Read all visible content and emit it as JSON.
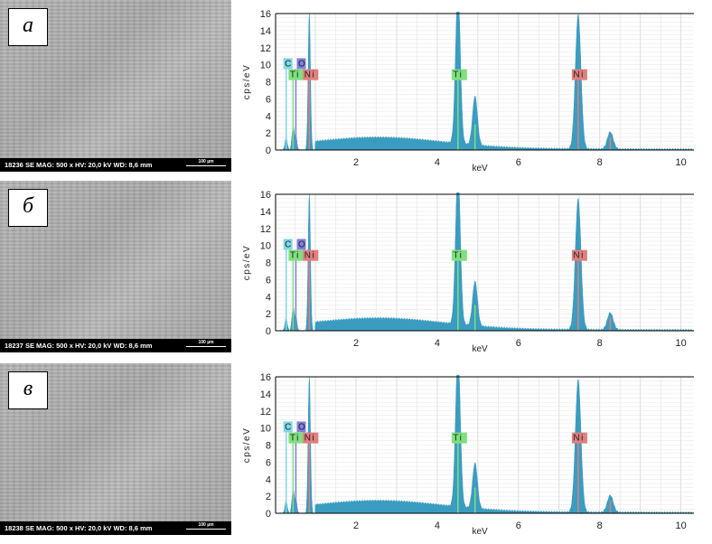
{
  "panels": [
    {
      "label": "а",
      "info": "18236  SE  MAG: 500 x  HV: 20,0 kV  WD: 8,6 mm",
      "scale": "100 µm",
      "tiKb": 5.7,
      "niKa": 15.7,
      "niKb": 2.0
    },
    {
      "label": "б",
      "info": "18237  SE  MAG: 500 x  HV: 20,0 kV  WD: 8,6 mm",
      "scale": "100 µm",
      "tiKb": 5.2,
      "niKa": 15.3,
      "niKb": 2.0
    },
    {
      "label": "в",
      "info": "18238  SE  MAG: 500 x  HV: 20,0 kV  WD: 8,6 mm",
      "scale": "100 µm",
      "tiKb": 5.3,
      "niKa": 15.5,
      "niKb": 2.0
    }
  ],
  "chart_data": {
    "type": "area",
    "xlabel": "keV",
    "ylabel": "cps/eV",
    "xlim": [
      0,
      10.3
    ],
    "ylim": [
      0,
      16
    ],
    "xticks": [
      "2",
      "4",
      "6",
      "8",
      "10"
    ],
    "yticks": [
      "0",
      "2",
      "4",
      "6",
      "8",
      "10",
      "12",
      "14",
      "16"
    ],
    "peaks": [
      {
        "e": 0.28,
        "h": 1.5
      },
      {
        "e": 0.45,
        "h": 2.7
      },
      {
        "e": 0.52,
        "h": 1.5
      },
      {
        "e": 0.85,
        "h": 16
      },
      {
        "e": 4.51,
        "h": 18
      },
      {
        "e": 4.93,
        "h": "tiKb"
      },
      {
        "e": 7.47,
        "h": "niKa"
      },
      {
        "e": 8.26,
        "h": "niKb"
      }
    ],
    "markers": [
      {
        "el": "C",
        "e": 0.28,
        "color": "#7fd8e8"
      },
      {
        "el": "O",
        "e": 0.52,
        "color": "#8080e0"
      },
      {
        "el": "Ti",
        "e": 0.45,
        "color": "#7fe07f"
      },
      {
        "el": "Ni",
        "e": 0.85,
        "color": "#e07f7f"
      },
      {
        "el": "Ti",
        "e": 4.51,
        "color": "#7fe07f"
      },
      {
        "el": "Ni",
        "e": 7.47,
        "color": "#e07f7f"
      }
    ],
    "spectrum_color": "#3a9cc0"
  }
}
